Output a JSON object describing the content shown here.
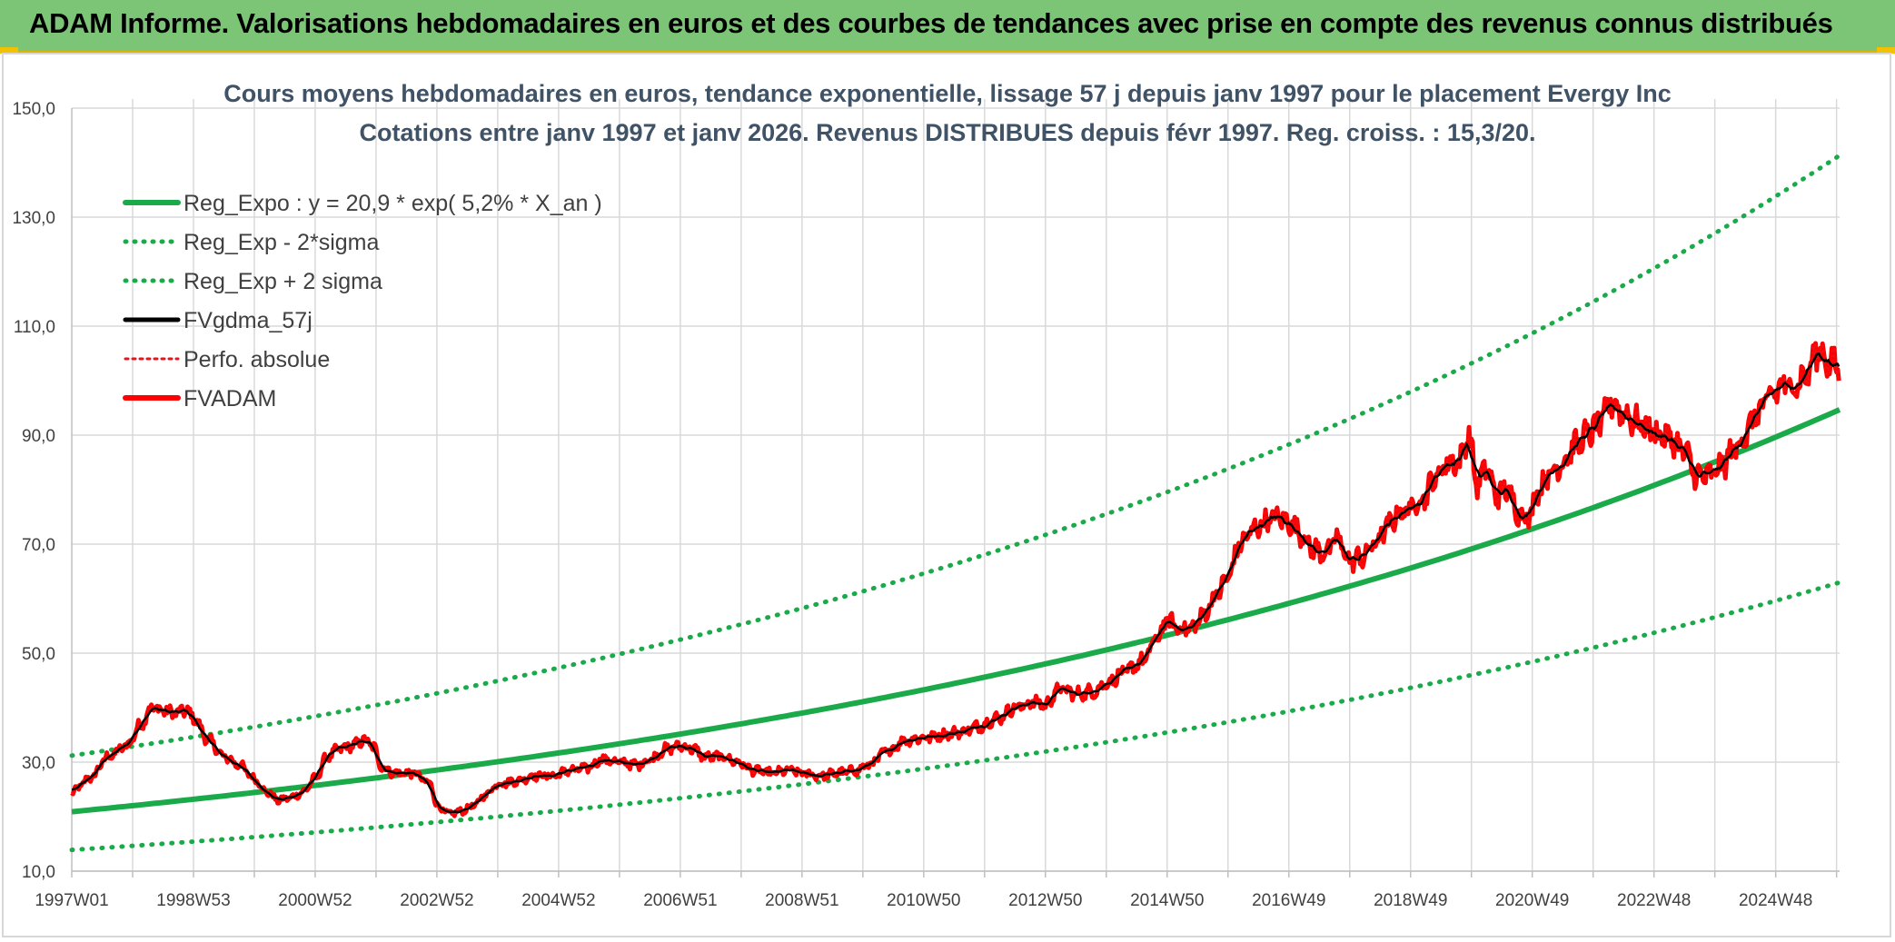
{
  "banner": {
    "title": "ADAM Informe. Valorisations hebdomadaires en euros et des courbes de tendances avec prise en compte des revenus connus distribués"
  },
  "chart_data": {
    "type": "line",
    "title": "Cours moyens hebdomadaires en euros, tendance exponentielle, lissage 57 j depuis janv 1997 pour le placement Evergy Inc",
    "subtitle": "Cotations entre janv 1997 et janv 2026. Revenus DISTRIBUES depuis févr 1997. Reg. croiss. : 15,3/20.",
    "xlabel": "",
    "ylabel": "",
    "ylim": [
      10,
      150
    ],
    "y_ticks": [
      "10,0",
      "30,0",
      "50,0",
      "70,0",
      "90,0",
      "110,0",
      "130,0",
      "150,0"
    ],
    "y_tick_values": [
      10,
      30,
      50,
      70,
      90,
      110,
      130,
      150
    ],
    "xlim": [
      1997.0,
      2026.05
    ],
    "x_tick_labels": [
      "1997W01",
      "1998W53",
      "2000W52",
      "2002W52",
      "2004W52",
      "2006W51",
      "2008W51",
      "2010W50",
      "2012W50",
      "2014W50",
      "2016W49",
      "2018W49",
      "2020W49",
      "2022W48",
      "2024W48"
    ],
    "x_tick_positions": [
      1997.0,
      1999.0,
      2001.0,
      2003.0,
      2005.0,
      2007.0,
      2009.0,
      2011.0,
      2013.0,
      2015.0,
      2017.0,
      2019.0,
      2021.0,
      2023.0,
      2025.0
    ],
    "grid": true,
    "legend_position": "top-left",
    "colors": {
      "trend": "#1aaa4a",
      "bands": "#1aaa4a",
      "smoothed": "#000000",
      "perf": "#e8141b",
      "price": "#ff0000"
    },
    "series": [
      {
        "name": "Reg_Expo : y = 20,9 * exp( 5,2% *  X_an )",
        "style": "solid-thick-green",
        "model": {
          "a": 20.9,
          "rate": 0.052,
          "start": 1997.0
        }
      },
      {
        "name": "Reg_Exp - 2*sigma",
        "style": "dotted-green",
        "model": {
          "a": 13.9,
          "rate": 0.052,
          "start": 1997.0
        }
      },
      {
        "name": "Reg_Exp + 2 sigma",
        "style": "dotted-green",
        "model": {
          "a": 31.2,
          "rate": 0.052,
          "start": 1997.0
        }
      },
      {
        "name": "FVgdma_57j",
        "style": "solid-black"
      },
      {
        "name": "Perfo. absolue",
        "style": "dotted-red"
      },
      {
        "name": "FVADAM",
        "style": "solid-thick-red"
      }
    ],
    "price_points": [
      [
        1997.0,
        24.5
      ],
      [
        1997.3,
        27
      ],
      [
        1997.6,
        31
      ],
      [
        1997.9,
        33
      ],
      [
        1998.15,
        37
      ],
      [
        1998.3,
        40
      ],
      [
        1998.5,
        39.5
      ],
      [
        1998.7,
        39
      ],
      [
        1998.9,
        39.5
      ],
      [
        1999.0,
        38
      ],
      [
        1999.25,
        34
      ],
      [
        1999.5,
        31
      ],
      [
        1999.75,
        29.5
      ],
      [
        2000.0,
        27
      ],
      [
        2000.2,
        24.5
      ],
      [
        2000.4,
        23
      ],
      [
        2000.6,
        23.5
      ],
      [
        2000.8,
        24.5
      ],
      [
        2001.0,
        27
      ],
      [
        2001.2,
        31
      ],
      [
        2001.4,
        32.5
      ],
      [
        2001.6,
        33
      ],
      [
        2001.8,
        34
      ],
      [
        2001.95,
        33
      ],
      [
        2002.1,
        29
      ],
      [
        2002.3,
        28
      ],
      [
        2002.6,
        28
      ],
      [
        2002.9,
        26
      ],
      [
        2003.0,
        22
      ],
      [
        2003.2,
        20.5
      ],
      [
        2003.4,
        21
      ],
      [
        2003.6,
        22
      ],
      [
        2003.8,
        24
      ],
      [
        2004.0,
        26
      ],
      [
        2004.3,
        26.5
      ],
      [
        2004.6,
        27.5
      ],
      [
        2004.9,
        27.5
      ],
      [
        2005.2,
        28.5
      ],
      [
        2005.5,
        29
      ],
      [
        2005.7,
        30.5
      ],
      [
        2006.0,
        30
      ],
      [
        2006.3,
        29.5
      ],
      [
        2006.5,
        30.5
      ],
      [
        2006.8,
        32.5
      ],
      [
        2007.0,
        33
      ],
      [
        2007.2,
        32.5
      ],
      [
        2007.4,
        31
      ],
      [
        2007.7,
        31
      ],
      [
        2007.95,
        30
      ],
      [
        2008.2,
        28.5
      ],
      [
        2008.5,
        28
      ],
      [
        2008.8,
        28.5
      ],
      [
        2009.0,
        28
      ],
      [
        2009.3,
        27.5
      ],
      [
        2009.6,
        28
      ],
      [
        2009.9,
        28.5
      ],
      [
        2010.1,
        29.5
      ],
      [
        2010.4,
        32
      ],
      [
        2010.7,
        34
      ],
      [
        2011.0,
        34.5
      ],
      [
        2011.3,
        35
      ],
      [
        2011.6,
        35.5
      ],
      [
        2011.9,
        36.5
      ],
      [
        2012.2,
        38
      ],
      [
        2012.5,
        40
      ],
      [
        2012.8,
        41
      ],
      [
        2013.0,
        40.5
      ],
      [
        2013.25,
        43.5
      ],
      [
        2013.5,
        42.5
      ],
      [
        2013.8,
        43
      ],
      [
        2014.0,
        44.5
      ],
      [
        2014.3,
        46.5
      ],
      [
        2014.6,
        48.5
      ],
      [
        2014.85,
        53
      ],
      [
        2015.0,
        56
      ],
      [
        2015.2,
        54.5
      ],
      [
        2015.4,
        54.5
      ],
      [
        2015.6,
        57
      ],
      [
        2015.8,
        60.5
      ],
      [
        2016.0,
        64
      ],
      [
        2016.2,
        70
      ],
      [
        2016.4,
        72.5
      ],
      [
        2016.6,
        74
      ],
      [
        2016.8,
        75
      ],
      [
        2017.0,
        74
      ],
      [
        2017.2,
        72
      ],
      [
        2017.4,
        69
      ],
      [
        2017.6,
        68.5
      ],
      [
        2017.8,
        71
      ],
      [
        2018.0,
        67
      ],
      [
        2018.2,
        67.5
      ],
      [
        2018.4,
        70
      ],
      [
        2018.6,
        73
      ],
      [
        2018.8,
        75.5
      ],
      [
        2019.0,
        76.5
      ],
      [
        2019.2,
        78.5
      ],
      [
        2019.4,
        82
      ],
      [
        2019.6,
        85
      ],
      [
        2019.8,
        85
      ],
      [
        2019.95,
        90
      ],
      [
        2020.1,
        81
      ],
      [
        2020.25,
        84
      ],
      [
        2020.4,
        79
      ],
      [
        2020.6,
        80
      ],
      [
        2020.75,
        76
      ],
      [
        2020.95,
        75
      ],
      [
        2021.1,
        80
      ],
      [
        2021.3,
        83
      ],
      [
        2021.5,
        85
      ],
      [
        2021.7,
        88
      ],
      [
        2021.9,
        90
      ],
      [
        2022.1,
        92
      ],
      [
        2022.3,
        96
      ],
      [
        2022.5,
        94
      ],
      [
        2022.7,
        92.5
      ],
      [
        2022.9,
        91
      ],
      [
        2023.1,
        90
      ],
      [
        2023.3,
        89
      ],
      [
        2023.5,
        87
      ],
      [
        2023.7,
        82.5
      ],
      [
        2023.9,
        82.5
      ],
      [
        2024.1,
        84
      ],
      [
        2024.3,
        87
      ],
      [
        2024.5,
        90
      ],
      [
        2024.7,
        94
      ],
      [
        2024.9,
        97
      ],
      [
        2025.1,
        99
      ],
      [
        2025.3,
        99
      ],
      [
        2025.5,
        101
      ],
      [
        2025.7,
        105.5
      ],
      [
        2025.9,
        103
      ],
      [
        2026.05,
        102.5
      ]
    ]
  }
}
